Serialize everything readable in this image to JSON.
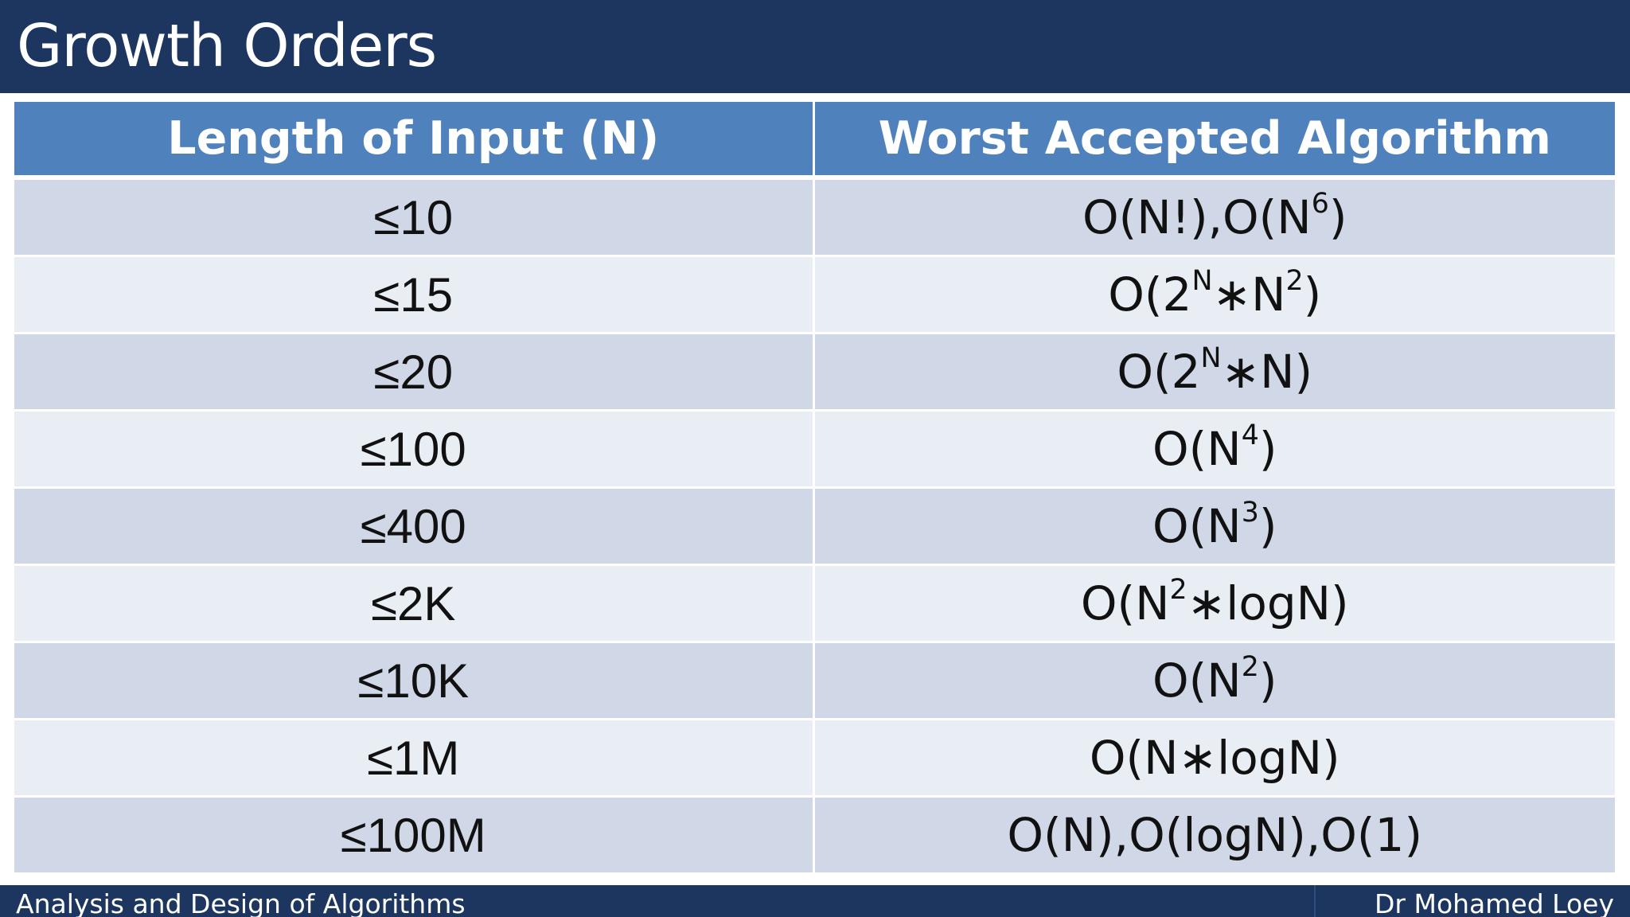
{
  "slide": {
    "title": "Growth Orders"
  },
  "table": {
    "headers": [
      "Length of Input (N)",
      "Worst Accepted Algorithm"
    ],
    "rows": [
      {
        "input": "≤10",
        "algorithm": "O(N!),O(N6)",
        "algorithm_parts": [
          "O(N!),O(N",
          "6",
          ")"
        ]
      },
      {
        "input": "≤15",
        "algorithm": "O(2N∗N2)",
        "algorithm_parts": [
          "O(2",
          "N",
          "∗N",
          "2",
          ")"
        ]
      },
      {
        "input": "≤20",
        "algorithm": "O(2N∗N)",
        "algorithm_parts": [
          "O(2",
          "N",
          "∗N)"
        ]
      },
      {
        "input": "≤100",
        "algorithm": "O(N4)",
        "algorithm_parts": [
          "O(N",
          "4",
          ")"
        ]
      },
      {
        "input": "≤400",
        "algorithm": "O(N3)",
        "algorithm_parts": [
          "O(N",
          "3",
          ")"
        ]
      },
      {
        "input": "≤2K",
        "algorithm": "O(N2∗logN)",
        "algorithm_parts": [
          "O(N",
          "2",
          "∗logN)"
        ]
      },
      {
        "input": "≤10K",
        "algorithm": "O(N2)",
        "algorithm_parts": [
          "O(N",
          "2",
          ")"
        ]
      },
      {
        "input": "≤1M",
        "algorithm": "O(N∗logN)",
        "algorithm_parts": [
          "O(N∗logN)"
        ]
      },
      {
        "input": "≤100M",
        "algorithm": "O(N),O(logN),O(1)",
        "algorithm_parts": [
          "O(N),O(logN),O(1)"
        ]
      }
    ]
  },
  "footer": {
    "course": "Analysis and Design of Algorithms",
    "author": "Dr Mohamed Loey"
  },
  "colors": {
    "title_bar": "#1c365f",
    "header_fill": "#4f81bd",
    "row_odd": "#d0d8e8",
    "row_even": "#e9edf4"
  }
}
